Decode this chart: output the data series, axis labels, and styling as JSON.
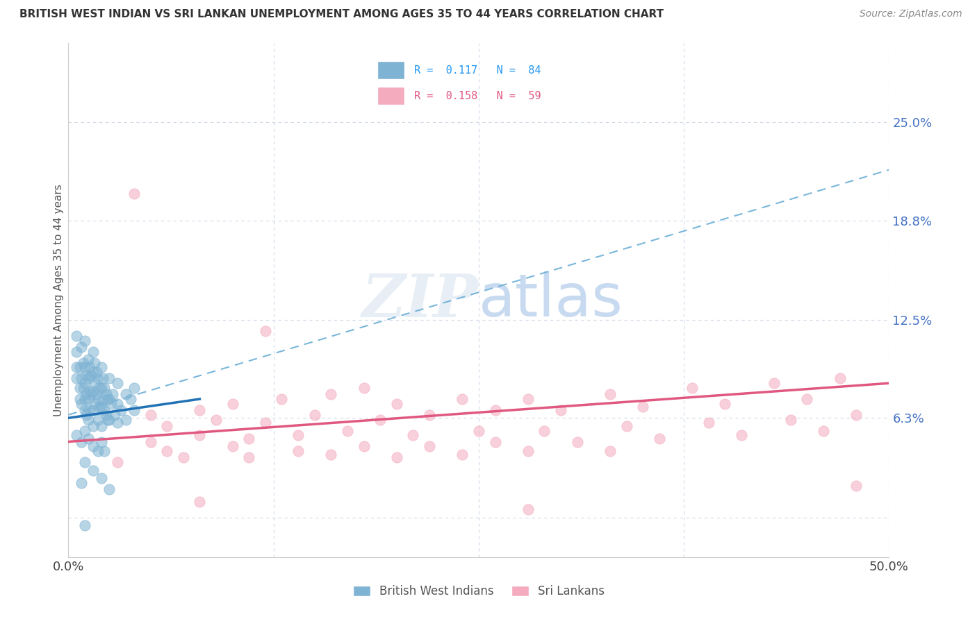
{
  "title": "BRITISH WEST INDIAN VS SRI LANKAN UNEMPLOYMENT AMONG AGES 35 TO 44 YEARS CORRELATION CHART",
  "source": "Source: ZipAtlas.com",
  "ylabel": "Unemployment Among Ages 35 to 44 years",
  "xlim": [
    0.0,
    0.5
  ],
  "ylim": [
    -0.025,
    0.3
  ],
  "yticks": [
    0.0,
    0.063,
    0.125,
    0.188,
    0.25
  ],
  "ytick_labels": [
    "",
    "6.3%",
    "12.5%",
    "18.8%",
    "25.0%"
  ],
  "xticks": [
    0.0,
    0.125,
    0.25,
    0.375,
    0.5
  ],
  "xtick_labels": [
    "0.0%",
    "",
    "",
    "",
    "50.0%"
  ],
  "color_bwi": "#7FB3D3",
  "color_sri": "#F4ABBE",
  "color_bwi_line": "#2171B5",
  "color_sri_line": "#E05880",
  "color_dash": "#6BAED6",
  "color_grid": "#D0D8E8",
  "R_bwi": 0.117,
  "N_bwi": 84,
  "R_sri": 0.158,
  "N_sri": 59,
  "bwi_line_x": [
    0.0,
    0.08
  ],
  "bwi_line_y": [
    0.063,
    0.075
  ],
  "sri_line_x": [
    0.0,
    0.5
  ],
  "sri_line_y": [
    0.048,
    0.085
  ],
  "dash_line_x": [
    0.0,
    0.5
  ],
  "dash_line_y": [
    0.065,
    0.22
  ],
  "bwi_scatter": [
    [
      0.005,
      0.115
    ],
    [
      0.005,
      0.105
    ],
    [
      0.005,
      0.095
    ],
    [
      0.005,
      0.088
    ],
    [
      0.007,
      0.082
    ],
    [
      0.007,
      0.095
    ],
    [
      0.007,
      0.075
    ],
    [
      0.008,
      0.108
    ],
    [
      0.008,
      0.088
    ],
    [
      0.008,
      0.072
    ],
    [
      0.009,
      0.098
    ],
    [
      0.009,
      0.082
    ],
    [
      0.01,
      0.112
    ],
    [
      0.01,
      0.095
    ],
    [
      0.01,
      0.085
    ],
    [
      0.01,
      0.075
    ],
    [
      0.01,
      0.068
    ],
    [
      0.011,
      0.09
    ],
    [
      0.011,
      0.078
    ],
    [
      0.011,
      0.065
    ],
    [
      0.012,
      0.1
    ],
    [
      0.012,
      0.088
    ],
    [
      0.012,
      0.075
    ],
    [
      0.012,
      0.062
    ],
    [
      0.013,
      0.095
    ],
    [
      0.013,
      0.08
    ],
    [
      0.013,
      0.068
    ],
    [
      0.014,
      0.09
    ],
    [
      0.014,
      0.078
    ],
    [
      0.015,
      0.105
    ],
    [
      0.015,
      0.092
    ],
    [
      0.015,
      0.08
    ],
    [
      0.015,
      0.068
    ],
    [
      0.015,
      0.058
    ],
    [
      0.016,
      0.098
    ],
    [
      0.016,
      0.085
    ],
    [
      0.016,
      0.072
    ],
    [
      0.017,
      0.092
    ],
    [
      0.017,
      0.078
    ],
    [
      0.018,
      0.088
    ],
    [
      0.018,
      0.075
    ],
    [
      0.018,
      0.062
    ],
    [
      0.019,
      0.082
    ],
    [
      0.019,
      0.07
    ],
    [
      0.02,
      0.095
    ],
    [
      0.02,
      0.082
    ],
    [
      0.02,
      0.07
    ],
    [
      0.02,
      0.058
    ],
    [
      0.021,
      0.088
    ],
    [
      0.021,
      0.075
    ],
    [
      0.022,
      0.082
    ],
    [
      0.022,
      0.068
    ],
    [
      0.023,
      0.078
    ],
    [
      0.023,
      0.065
    ],
    [
      0.024,
      0.075
    ],
    [
      0.024,
      0.062
    ],
    [
      0.025,
      0.088
    ],
    [
      0.025,
      0.075
    ],
    [
      0.025,
      0.062
    ],
    [
      0.026,
      0.072
    ],
    [
      0.027,
      0.078
    ],
    [
      0.028,
      0.065
    ],
    [
      0.03,
      0.085
    ],
    [
      0.03,
      0.072
    ],
    [
      0.03,
      0.06
    ],
    [
      0.032,
      0.068
    ],
    [
      0.035,
      0.078
    ],
    [
      0.035,
      0.062
    ],
    [
      0.038,
      0.075
    ],
    [
      0.04,
      0.082
    ],
    [
      0.04,
      0.068
    ],
    [
      0.005,
      0.052
    ],
    [
      0.008,
      0.048
    ],
    [
      0.01,
      0.055
    ],
    [
      0.012,
      0.05
    ],
    [
      0.015,
      0.045
    ],
    [
      0.018,
      0.042
    ],
    [
      0.02,
      0.048
    ],
    [
      0.022,
      0.042
    ],
    [
      0.01,
      0.035
    ],
    [
      0.015,
      0.03
    ],
    [
      0.02,
      0.025
    ],
    [
      0.008,
      0.022
    ],
    [
      0.025,
      0.018
    ],
    [
      0.01,
      -0.005
    ]
  ],
  "sri_scatter": [
    [
      0.04,
      0.205
    ],
    [
      0.12,
      0.118
    ],
    [
      0.18,
      0.082
    ],
    [
      0.05,
      0.065
    ],
    [
      0.08,
      0.068
    ],
    [
      0.1,
      0.072
    ],
    [
      0.13,
      0.075
    ],
    [
      0.16,
      0.078
    ],
    [
      0.2,
      0.072
    ],
    [
      0.24,
      0.075
    ],
    [
      0.28,
      0.075
    ],
    [
      0.33,
      0.078
    ],
    [
      0.38,
      0.082
    ],
    [
      0.43,
      0.085
    ],
    [
      0.47,
      0.088
    ],
    [
      0.06,
      0.058
    ],
    [
      0.09,
      0.062
    ],
    [
      0.12,
      0.06
    ],
    [
      0.15,
      0.065
    ],
    [
      0.19,
      0.062
    ],
    [
      0.22,
      0.065
    ],
    [
      0.26,
      0.068
    ],
    [
      0.3,
      0.068
    ],
    [
      0.35,
      0.07
    ],
    [
      0.4,
      0.072
    ],
    [
      0.45,
      0.075
    ],
    [
      0.05,
      0.048
    ],
    [
      0.08,
      0.052
    ],
    [
      0.11,
      0.05
    ],
    [
      0.14,
      0.052
    ],
    [
      0.17,
      0.055
    ],
    [
      0.21,
      0.052
    ],
    [
      0.25,
      0.055
    ],
    [
      0.29,
      0.055
    ],
    [
      0.34,
      0.058
    ],
    [
      0.39,
      0.06
    ],
    [
      0.44,
      0.062
    ],
    [
      0.48,
      0.065
    ],
    [
      0.06,
      0.042
    ],
    [
      0.1,
      0.045
    ],
    [
      0.14,
      0.042
    ],
    [
      0.18,
      0.045
    ],
    [
      0.22,
      0.045
    ],
    [
      0.26,
      0.048
    ],
    [
      0.31,
      0.048
    ],
    [
      0.36,
      0.05
    ],
    [
      0.41,
      0.052
    ],
    [
      0.46,
      0.055
    ],
    [
      0.03,
      0.035
    ],
    [
      0.07,
      0.038
    ],
    [
      0.11,
      0.038
    ],
    [
      0.16,
      0.04
    ],
    [
      0.2,
      0.038
    ],
    [
      0.24,
      0.04
    ],
    [
      0.28,
      0.042
    ],
    [
      0.33,
      0.042
    ],
    [
      0.08,
      0.01
    ],
    [
      0.28,
      0.005
    ],
    [
      0.48,
      0.02
    ]
  ]
}
